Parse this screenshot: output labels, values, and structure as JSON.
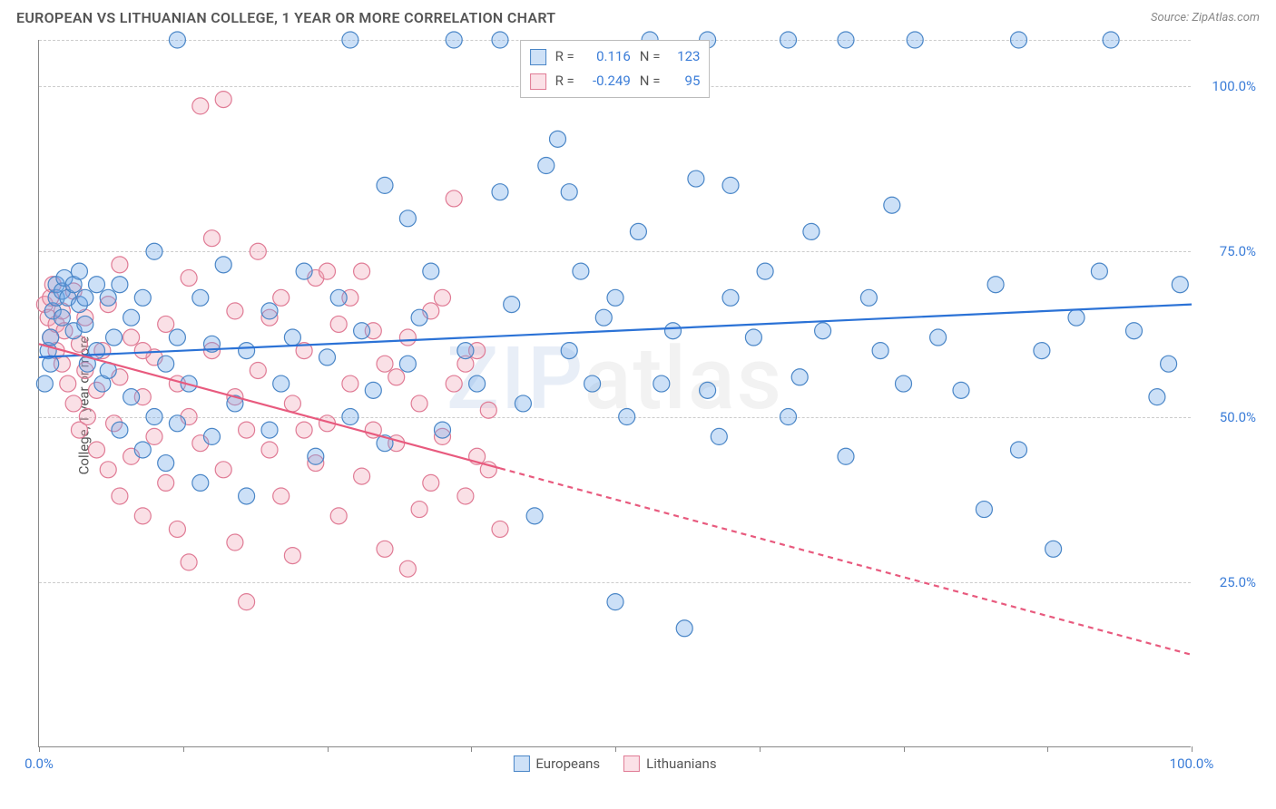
{
  "header": {
    "title": "EUROPEAN VS LITHUANIAN COLLEGE, 1 YEAR OR MORE CORRELATION CHART",
    "source": "Source: ZipAtlas.com"
  },
  "chart": {
    "type": "scatter",
    "y_axis_title": "College, 1 year or more",
    "xlim": [
      0,
      100
    ],
    "ylim": [
      0,
      107
    ],
    "x_ticks": [
      0,
      12.5,
      25,
      37.5,
      50,
      62.5,
      75,
      87.5,
      100
    ],
    "x_tick_labels": {
      "0": "0.0%",
      "100": "100.0%"
    },
    "y_gridlines": [
      25,
      50,
      75,
      100,
      107
    ],
    "y_tick_labels": {
      "25": "25.0%",
      "50": "50.0%",
      "75": "75.0%",
      "100": "100.0%"
    },
    "axis_label_color": "#3b7dd8",
    "background_color": "#ffffff",
    "grid_color": "#cccccc",
    "watermark": "ZIPatlas",
    "marker_radius": 9,
    "marker_stroke_width": 1.2,
    "marker_fill_opacity": 0.35,
    "trend_line_width": 2.2,
    "series": {
      "europeans": {
        "label": "Europeans",
        "color": "#6ca6e8",
        "stroke": "#4a86c7",
        "trend_color": "#2b72d6",
        "R": "0.116",
        "N": "123",
        "trend": {
          "x1": 0,
          "y1": 59,
          "x2": 100,
          "y2": 67,
          "dash_after_x": null
        },
        "points": [
          [
            0.5,
            55
          ],
          [
            0.8,
            60
          ],
          [
            1,
            58
          ],
          [
            1,
            62
          ],
          [
            1.2,
            66
          ],
          [
            1.5,
            68
          ],
          [
            1.5,
            70
          ],
          [
            2,
            65
          ],
          [
            2,
            69
          ],
          [
            2.2,
            71
          ],
          [
            2.5,
            68
          ],
          [
            3,
            70
          ],
          [
            3,
            63
          ],
          [
            3.5,
            67
          ],
          [
            3.5,
            72
          ],
          [
            4,
            64
          ],
          [
            4,
            68
          ],
          [
            4.2,
            58
          ],
          [
            5,
            70
          ],
          [
            5,
            60
          ],
          [
            5.5,
            55
          ],
          [
            6,
            68
          ],
          [
            6,
            57
          ],
          [
            6.5,
            62
          ],
          [
            7,
            48
          ],
          [
            7,
            70
          ],
          [
            8,
            53
          ],
          [
            8,
            65
          ],
          [
            9,
            45
          ],
          [
            9,
            68
          ],
          [
            10,
            50
          ],
          [
            10,
            75
          ],
          [
            11,
            58
          ],
          [
            11,
            43
          ],
          [
            12,
            62
          ],
          [
            12,
            49
          ],
          [
            12,
            107
          ],
          [
            13,
            55
          ],
          [
            14,
            68
          ],
          [
            14,
            40
          ],
          [
            15,
            61
          ],
          [
            15,
            47
          ],
          [
            16,
            73
          ],
          [
            17,
            52
          ],
          [
            18,
            60
          ],
          [
            18,
            38
          ],
          [
            20,
            66
          ],
          [
            20,
            48
          ],
          [
            21,
            55
          ],
          [
            22,
            62
          ],
          [
            23,
            72
          ],
          [
            24,
            44
          ],
          [
            25,
            59
          ],
          [
            26,
            68
          ],
          [
            27,
            50
          ],
          [
            27,
            107
          ],
          [
            28,
            63
          ],
          [
            29,
            54
          ],
          [
            30,
            85
          ],
          [
            30,
            46
          ],
          [
            32,
            80
          ],
          [
            32,
            58
          ],
          [
            33,
            65
          ],
          [
            34,
            72
          ],
          [
            35,
            48
          ],
          [
            36,
            107
          ],
          [
            37,
            60
          ],
          [
            38,
            55
          ],
          [
            40,
            84
          ],
          [
            40,
            107
          ],
          [
            41,
            67
          ],
          [
            42,
            52
          ],
          [
            43,
            35
          ],
          [
            44,
            88
          ],
          [
            45,
            92
          ],
          [
            46,
            60
          ],
          [
            46,
            84
          ],
          [
            47,
            72
          ],
          [
            48,
            55
          ],
          [
            49,
            65
          ],
          [
            50,
            22
          ],
          [
            50,
            68
          ],
          [
            51,
            50
          ],
          [
            52,
            78
          ],
          [
            53,
            107
          ],
          [
            54,
            55
          ],
          [
            55,
            63
          ],
          [
            56,
            18
          ],
          [
            57,
            86
          ],
          [
            58,
            107
          ],
          [
            58,
            54
          ],
          [
            59,
            47
          ],
          [
            60,
            68
          ],
          [
            60,
            85
          ],
          [
            62,
            62
          ],
          [
            63,
            72
          ],
          [
            65,
            50
          ],
          [
            65,
            107
          ],
          [
            66,
            56
          ],
          [
            67,
            78
          ],
          [
            68,
            63
          ],
          [
            70,
            44
          ],
          [
            70,
            107
          ],
          [
            72,
            68
          ],
          [
            73,
            60
          ],
          [
            74,
            82
          ],
          [
            75,
            55
          ],
          [
            76,
            107
          ],
          [
            78,
            62
          ],
          [
            80,
            54
          ],
          [
            82,
            36
          ],
          [
            83,
            70
          ],
          [
            85,
            107
          ],
          [
            85,
            45
          ],
          [
            87,
            60
          ],
          [
            88,
            30
          ],
          [
            90,
            65
          ],
          [
            92,
            72
          ],
          [
            93,
            107
          ],
          [
            95,
            63
          ],
          [
            97,
            53
          ],
          [
            98,
            58
          ],
          [
            99,
            70
          ]
        ]
      },
      "lithuanians": {
        "label": "Lithuanians",
        "color": "#f2a6b8",
        "stroke": "#e07b95",
        "trend_color": "#e85a7e",
        "R": "-0.249",
        "N": "95",
        "trend": {
          "x1": 0,
          "y1": 61,
          "x2": 100,
          "y2": 14,
          "dash_after_x": 40
        },
        "points": [
          [
            0.5,
            67
          ],
          [
            0.8,
            65
          ],
          [
            1,
            68
          ],
          [
            1,
            62
          ],
          [
            1.2,
            70
          ],
          [
            1.5,
            64
          ],
          [
            1.5,
            60
          ],
          [
            2,
            66
          ],
          [
            2,
            58
          ],
          [
            2.2,
            63
          ],
          [
            2.5,
            55
          ],
          [
            3,
            69
          ],
          [
            3,
            52
          ],
          [
            3.5,
            61
          ],
          [
            3.5,
            48
          ],
          [
            4,
            57
          ],
          [
            4,
            65
          ],
          [
            4.2,
            50
          ],
          [
            5,
            54
          ],
          [
            5,
            45
          ],
          [
            5.5,
            60
          ],
          [
            6,
            42
          ],
          [
            6,
            67
          ],
          [
            6.5,
            49
          ],
          [
            7,
            56
          ],
          [
            7,
            38
          ],
          [
            8,
            62
          ],
          [
            8,
            44
          ],
          [
            9,
            53
          ],
          [
            9,
            35
          ],
          [
            10,
            59
          ],
          [
            10,
            47
          ],
          [
            11,
            40
          ],
          [
            12,
            55
          ],
          [
            12,
            33
          ],
          [
            13,
            50
          ],
          [
            13,
            28
          ],
          [
            14,
            97
          ],
          [
            14,
            46
          ],
          [
            15,
            60
          ],
          [
            15,
            77
          ],
          [
            16,
            42
          ],
          [
            16,
            98
          ],
          [
            17,
            53
          ],
          [
            17,
            31
          ],
          [
            18,
            48
          ],
          [
            18,
            22
          ],
          [
            19,
            57
          ],
          [
            20,
            45
          ],
          [
            20,
            65
          ],
          [
            21,
            38
          ],
          [
            22,
            52
          ],
          [
            22,
            29
          ],
          [
            23,
            60
          ],
          [
            24,
            43
          ],
          [
            24,
            71
          ],
          [
            25,
            49
          ],
          [
            26,
            35
          ],
          [
            26,
            64
          ],
          [
            27,
            55
          ],
          [
            28,
            41
          ],
          [
            28,
            72
          ],
          [
            29,
            48
          ],
          [
            30,
            58
          ],
          [
            30,
            30
          ],
          [
            31,
            46
          ],
          [
            32,
            62
          ],
          [
            32,
            27
          ],
          [
            33,
            52
          ],
          [
            34,
            40
          ],
          [
            34,
            66
          ],
          [
            35,
            47
          ],
          [
            36,
            55
          ],
          [
            36,
            83
          ],
          [
            37,
            38
          ],
          [
            38,
            60
          ],
          [
            38,
            44
          ],
          [
            39,
            51
          ],
          [
            40,
            33
          ],
          [
            25,
            72
          ],
          [
            27,
            68
          ],
          [
            19,
            75
          ],
          [
            21,
            68
          ],
          [
            23,
            48
          ],
          [
            29,
            63
          ],
          [
            31,
            56
          ],
          [
            33,
            36
          ],
          [
            35,
            68
          ],
          [
            37,
            58
          ],
          [
            39,
            42
          ],
          [
            17,
            66
          ],
          [
            13,
            71
          ],
          [
            11,
            64
          ],
          [
            9,
            60
          ],
          [
            7,
            73
          ]
        ]
      }
    },
    "legend_top": {
      "r_label": "R =",
      "n_label": "N =",
      "text_color": "#555",
      "value_color": "#3b7dd8"
    },
    "legend_bottom": {
      "items": [
        "europeans",
        "lithuanians"
      ]
    }
  }
}
